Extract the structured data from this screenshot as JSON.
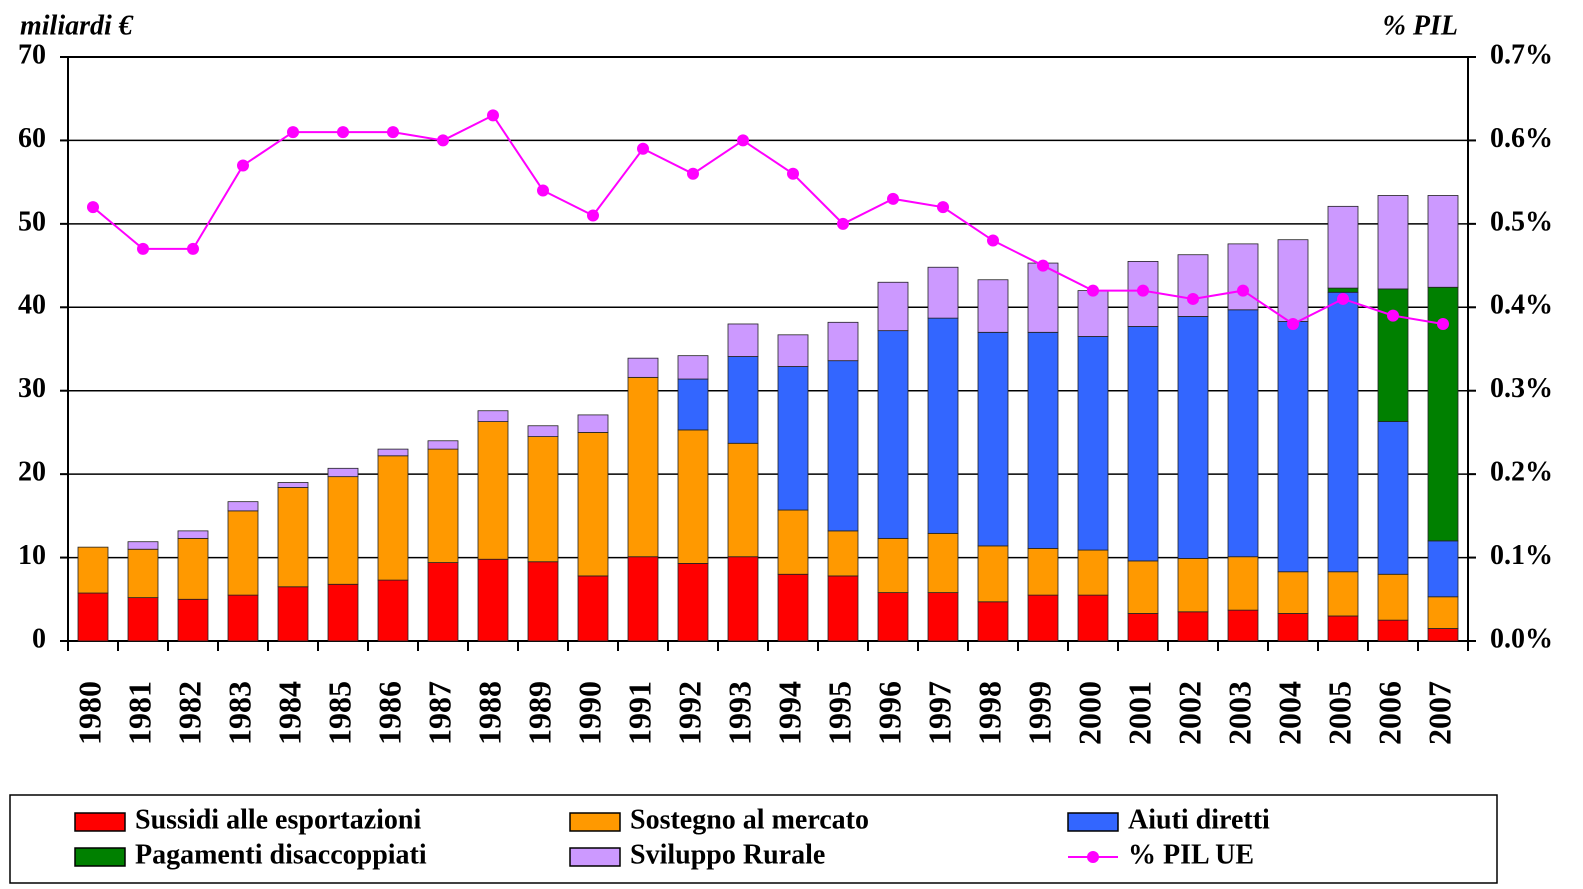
{
  "chart_data": {
    "type": "bar",
    "stacked": true,
    "y_label": "miliardi €",
    "y2_label": "% PIL",
    "categories": [
      "1980",
      "1981",
      "1982",
      "1983",
      "1984",
      "1985",
      "1986",
      "1987",
      "1988",
      "1989",
      "1990",
      "1991",
      "1992",
      "1993",
      "1994",
      "1995",
      "1996",
      "1997",
      "1998",
      "1999",
      "2000",
      "2001",
      "2002",
      "2003",
      "2004",
      "2005",
      "2006",
      "2007"
    ],
    "series": [
      {
        "name": "Sussidi alle esportazioni",
        "color": "#ff0000",
        "values": [
          5.75,
          5.2,
          5.0,
          5.5,
          6.5,
          6.8,
          7.3,
          9.4,
          9.8,
          9.5,
          7.8,
          10.1,
          9.3,
          10.1,
          8.0,
          7.8,
          5.8,
          5.8,
          4.7,
          5.5,
          5.5,
          3.3,
          3.5,
          3.7,
          3.3,
          3.0,
          2.5,
          1.5
        ]
      },
      {
        "name": "Sostegno al mercato",
        "color": "#ff9900",
        "values": [
          5.5,
          5.8,
          7.3,
          10.1,
          11.9,
          12.9,
          14.9,
          13.6,
          16.5,
          15.0,
          17.2,
          21.5,
          16.0,
          13.6,
          7.7,
          5.4,
          6.5,
          7.1,
          6.7,
          5.6,
          5.4,
          6.3,
          6.4,
          6.4,
          5.0,
          5.3,
          5.5,
          3.8
        ]
      },
      {
        "name": "Aiuti diretti",
        "color": "#3366ff",
        "values": [
          0,
          0,
          0,
          0,
          0,
          0,
          0,
          0,
          0,
          0,
          0,
          0,
          6.1,
          10.4,
          17.2,
          20.4,
          24.9,
          25.8,
          25.6,
          25.9,
          25.6,
          28.1,
          29.0,
          29.6,
          30.0,
          33.5,
          18.3,
          6.7
        ]
      },
      {
        "name": "Pagamenti disaccoppiati",
        "color": "#008000",
        "values": [
          0,
          0,
          0,
          0,
          0,
          0,
          0,
          0,
          0,
          0,
          0,
          0,
          0,
          0,
          0,
          0,
          0,
          0,
          0,
          0,
          0,
          0,
          0,
          0,
          0,
          0.5,
          15.9,
          30.4
        ]
      },
      {
        "name": "Sviluppo Rurale",
        "color": "#cc99ff",
        "values": [
          0,
          0.9,
          0.9,
          1.1,
          0.6,
          1.0,
          0.8,
          1.0,
          1.3,
          1.3,
          2.1,
          2.3,
          2.8,
          3.9,
          3.8,
          4.6,
          5.8,
          6.1,
          6.3,
          8.3,
          5.5,
          7.8,
          7.4,
          7.9,
          9.8,
          9.8,
          11.2,
          11.0
        ]
      },
      {
        "name": "% PIL UE",
        "color": "#ff00ff",
        "type": "line",
        "axis": "y2",
        "values": [
          0.52,
          0.47,
          0.47,
          0.57,
          0.61,
          0.61,
          0.61,
          0.6,
          0.63,
          0.54,
          0.51,
          0.59,
          0.56,
          0.6,
          0.56,
          0.5,
          0.53,
          0.52,
          0.48,
          0.45,
          0.42,
          0.42,
          0.41,
          0.42,
          0.38,
          0.41,
          0.39,
          0.38
        ]
      }
    ],
    "ylim": [
      0,
      70
    ],
    "yticks": [
      0,
      10,
      20,
      30,
      40,
      50,
      60,
      70
    ],
    "y2lim": [
      0,
      0.7
    ],
    "y2ticks": [
      {
        "value": 0,
        "label": "0.0%"
      },
      {
        "value": 0.1,
        "label": "0.1%"
      },
      {
        "value": 0.2,
        "label": "0.2%"
      },
      {
        "value": 0.3,
        "label": "0.3%"
      },
      {
        "value": 0.4,
        "label": "0.4%"
      },
      {
        "value": 0.5,
        "label": "0.5%"
      },
      {
        "value": 0.6,
        "label": "0.6%"
      },
      {
        "value": 0.7,
        "label": "0.7%"
      }
    ],
    "grid": true,
    "legend": "bottom"
  }
}
